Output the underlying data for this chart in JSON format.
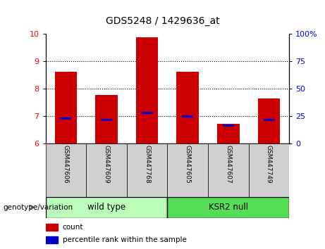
{
  "title": "GDS5248 / 1429636_at",
  "samples": [
    "GSM447606",
    "GSM447609",
    "GSM447768",
    "GSM447605",
    "GSM447607",
    "GSM447749"
  ],
  "bar_bottoms": [
    6,
    6,
    6,
    6,
    6,
    6
  ],
  "bar_tops": [
    8.62,
    7.76,
    9.87,
    8.6,
    6.72,
    7.62
  ],
  "percentile_values": [
    6.9,
    6.84,
    7.1,
    6.97,
    6.65,
    6.85
  ],
  "bar_color": "#cc0000",
  "percentile_color": "#0000cc",
  "ylim_left": [
    6,
    10
  ],
  "ylim_right": [
    0,
    100
  ],
  "yticks_left": [
    6,
    7,
    8,
    9,
    10
  ],
  "yticks_right": [
    0,
    25,
    50,
    75,
    100
  ],
  "ytick_labels_right": [
    "0",
    "25",
    "50",
    "75",
    "100%"
  ],
  "genotype_label": "genotype/variation",
  "legend_count": "count",
  "legend_percentile": "percentile rank within the sample",
  "bar_width": 0.55,
  "group_box_color_wt": "#bbffbb",
  "group_box_color_ksr2": "#55dd55",
  "sample_box_color": "#d0d0d0",
  "grid_color": "#000000",
  "grid_linestyle": ":",
  "grid_linewidth": 0.8
}
